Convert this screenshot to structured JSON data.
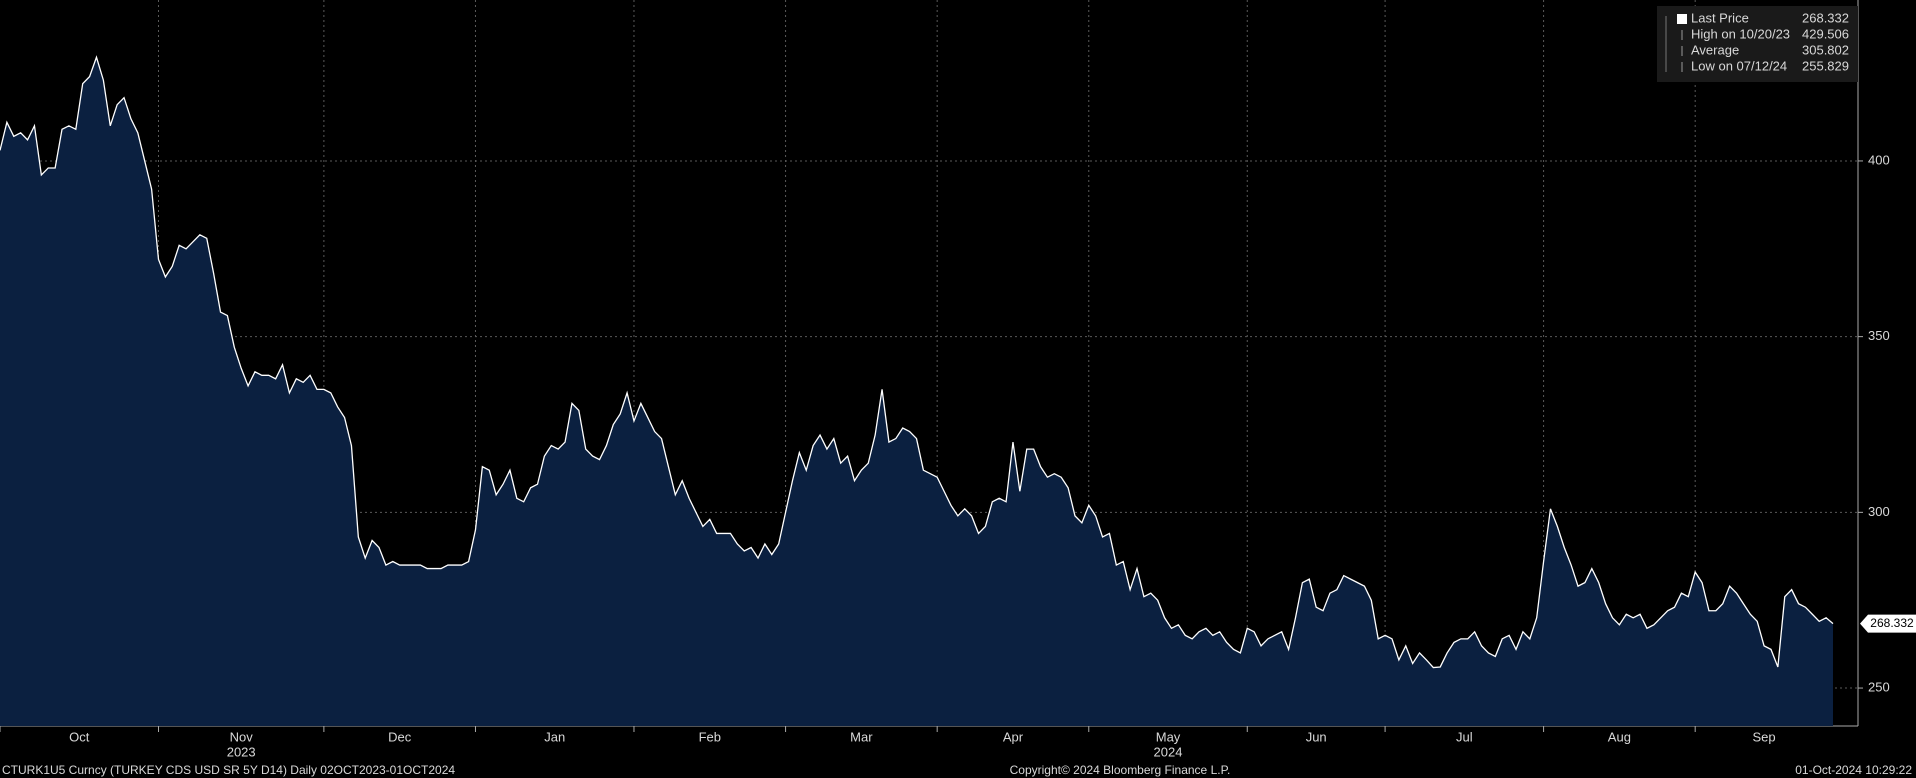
{
  "chart_data": {
    "type": "area",
    "series": [
      {
        "name": "Last Price",
        "color": "#ffffff",
        "fill": "#0b2040",
        "values": [
          403,
          411,
          407,
          408,
          406,
          410,
          396,
          398,
          398,
          409,
          410,
          409,
          422,
          424,
          429.506,
          423,
          410,
          416,
          418,
          412,
          408,
          400,
          392,
          372,
          367,
          370,
          376,
          375,
          377,
          379,
          378,
          368,
          357,
          356,
          347,
          341,
          336,
          340,
          339,
          339,
          338,
          342,
          334,
          338,
          337,
          339,
          335,
          335,
          334,
          330,
          327,
          319,
          293,
          287,
          292,
          290,
          285,
          286,
          285,
          285,
          285,
          285,
          284,
          284,
          284,
          285,
          285,
          285,
          286,
          295,
          313,
          312,
          305,
          308,
          312,
          304,
          303,
          307,
          308,
          316,
          319,
          318,
          320,
          331,
          329,
          318,
          316,
          315,
          319,
          325,
          328,
          334,
          326,
          331,
          327,
          323,
          321,
          313,
          305,
          309,
          304,
          300,
          296,
          298,
          294,
          294,
          294,
          291,
          289,
          290,
          287,
          291,
          288,
          291,
          300,
          309,
          317,
          312,
          319,
          322,
          318,
          321,
          314,
          316,
          309,
          312,
          314,
          322,
          335,
          320,
          321,
          324,
          323,
          321,
          312,
          311,
          310,
          306,
          302,
          299,
          301,
          299,
          294,
          296,
          303,
          304,
          303,
          320,
          306,
          318,
          318,
          313,
          310,
          311,
          310,
          307,
          299,
          297,
          302,
          299,
          293,
          294,
          285,
          286,
          278,
          284,
          276,
          277,
          275,
          270,
          267,
          268,
          265,
          264,
          266,
          267,
          265,
          266,
          263,
          261,
          260,
          267,
          266,
          262,
          264,
          265,
          266,
          261,
          270,
          280,
          281,
          273,
          272,
          277,
          278,
          282,
          281,
          280,
          279,
          275,
          264,
          265,
          264,
          258,
          262,
          257,
          260,
          258,
          255.829,
          256,
          260,
          263,
          264,
          264,
          266,
          262,
          260,
          259,
          264,
          265,
          261,
          266,
          264,
          270,
          286,
          301,
          296,
          290,
          285,
          279,
          280,
          284,
          280,
          274,
          270,
          268,
          271,
          270,
          271,
          267,
          268,
          270,
          272,
          273,
          277,
          276,
          283,
          280,
          272,
          272,
          274,
          279,
          277,
          274,
          271,
          269,
          262,
          261,
          256,
          276,
          278,
          274,
          273,
          271,
          269,
          270,
          268.332
        ]
      }
    ],
    "ylim": [
      239.2,
      445.8
    ],
    "yticks": [
      250,
      300,
      350,
      400
    ],
    "xticks": [
      {
        "value": 0,
        "label": "Oct"
      },
      {
        "value": 23,
        "label": "Nov",
        "year": "2023"
      },
      {
        "value": 47,
        "label": "Dec"
      },
      {
        "value": 69,
        "label": "Jan"
      },
      {
        "value": 92,
        "label": "Feb"
      },
      {
        "value": 114,
        "label": "Mar"
      },
      {
        "value": 136,
        "label": "Apr"
      },
      {
        "value": 158,
        "label": "May",
        "year": "2024"
      },
      {
        "value": 181,
        "label": "Jun"
      },
      {
        "value": 201,
        "label": "Jul"
      },
      {
        "value": 224,
        "label": "Aug"
      },
      {
        "value": 246,
        "label": "Sep"
      }
    ],
    "grid": true,
    "legend": {
      "position": "upper right",
      "stats": [
        {
          "label": "High on 10/20/23",
          "value": 429.506
        },
        {
          "label": "Average",
          "value": 305.802
        },
        {
          "label": "Low on 07/12/24",
          "value": 255.829
        }
      ]
    },
    "last_value": 268.332,
    "footer": {
      "left": "CTURK1U5 Curncy (TURKEY CDS USD SR 5Y D14)  Daily 02OCT2023-01OCT2024",
      "center": "Copyright© 2024 Bloomberg Finance L.P.",
      "right": "01-Oct-2024 10:29:22"
    }
  }
}
